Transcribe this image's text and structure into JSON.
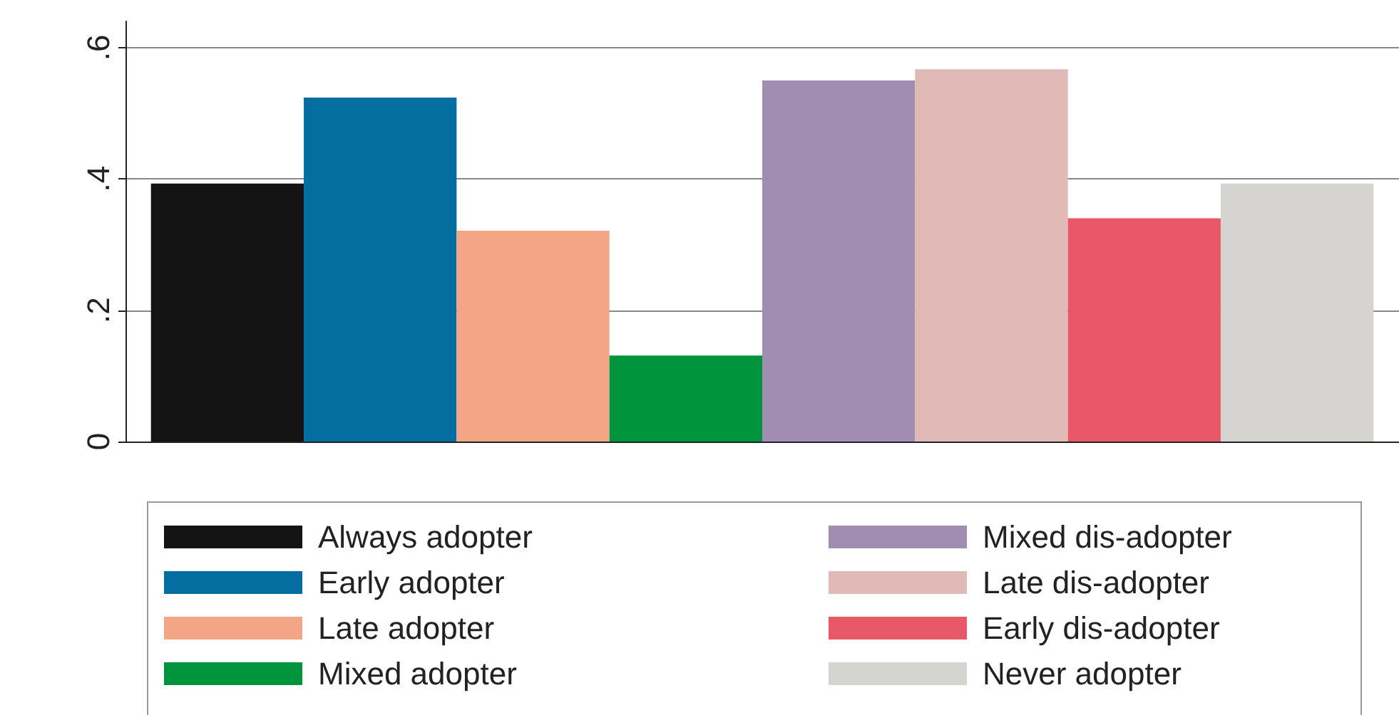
{
  "chart_data": {
    "type": "bar",
    "categories": [
      null
    ],
    "series": [
      {
        "name": "Always adopter",
        "color": "#141414",
        "values": [
          0.393
        ]
      },
      {
        "name": "Early adopter",
        "color": "#036e9f",
        "values": [
          0.524
        ]
      },
      {
        "name": "Late adopter",
        "color": "#f3a585",
        "values": [
          0.321
        ]
      },
      {
        "name": "Mixed adopter",
        "color": "#00943d",
        "values": [
          0.131
        ]
      },
      {
        "name": "Mixed dis-adopter",
        "color": "#a18cb2",
        "values": [
          0.55
        ]
      },
      {
        "name": "Late dis-adopter",
        "color": "#dfbab6",
        "values": [
          0.567
        ]
      },
      {
        "name": "Early dis-adopter",
        "color": "#e85866",
        "values": [
          0.34
        ]
      },
      {
        "name": "Never adopter",
        "color": "#d5d4d1",
        "values": [
          0.393
        ]
      }
    ],
    "ylim": [
      0,
      0.64
    ],
    "yticks": [
      0,
      {
        "value": 0.2,
        "label": ".2"
      },
      {
        "value": 0.4,
        "label": ".4"
      },
      {
        "value": 0.6,
        "label": ".6"
      }
    ],
    "grid": "y",
    "legend": "bottom"
  }
}
